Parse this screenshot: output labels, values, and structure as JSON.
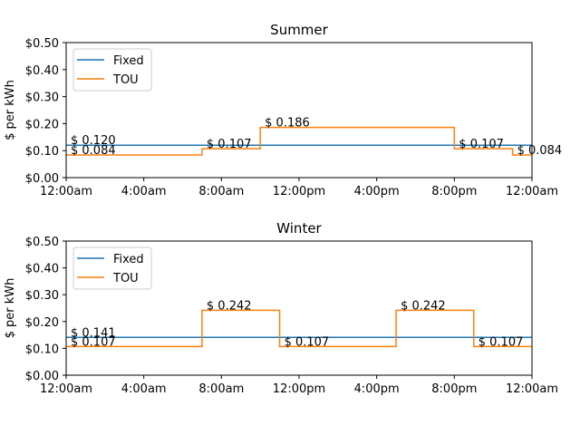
{
  "chart_data": [
    {
      "type": "line",
      "title": "Summer",
      "xlabel": "",
      "ylabel": "$ per kWh",
      "xlim": [
        0,
        24
      ],
      "ylim": [
        0,
        0.5
      ],
      "x_ticks": [
        0,
        4,
        8,
        12,
        16,
        20,
        24
      ],
      "x_tick_labels": [
        "12:00am",
        "4:00am",
        "8:00am",
        "12:00pm",
        "4:00pm",
        "8:00pm",
        "12:00am"
      ],
      "y_ticks": [
        0,
        0.1,
        0.2,
        0.3,
        0.4,
        0.5
      ],
      "y_tick_labels": [
        "$0.00",
        "$0.10",
        "$0.20",
        "$0.30",
        "$0.40",
        "$0.50"
      ],
      "legend": {
        "position": "upper-left",
        "entries": [
          "Fixed",
          "TOU"
        ]
      },
      "series": [
        {
          "name": "Fixed",
          "color": "#1f77b4",
          "steps": [
            {
              "start": 0,
              "end": 24,
              "value": 0.12
            }
          ]
        },
        {
          "name": "TOU",
          "color": "#ff7f0e",
          "steps": [
            {
              "start": 0,
              "end": 7,
              "value": 0.084
            },
            {
              "start": 7,
              "end": 10,
              "value": 0.107
            },
            {
              "start": 10,
              "end": 20,
              "value": 0.186
            },
            {
              "start": 20,
              "end": 23,
              "value": 0.107
            },
            {
              "start": 23,
              "end": 24,
              "value": 0.084
            }
          ]
        }
      ],
      "annotations": [
        {
          "x": 0,
          "y": 0.12,
          "text": "$ 0.120"
        },
        {
          "x": 0,
          "y": 0.084,
          "text": "$ 0.084"
        },
        {
          "x": 7,
          "y": 0.107,
          "text": "$ 0.107"
        },
        {
          "x": 10,
          "y": 0.186,
          "text": "$ 0.186"
        },
        {
          "x": 20,
          "y": 0.107,
          "text": "$ 0.107"
        },
        {
          "x": 23,
          "y": 0.084,
          "text": "$ 0.084"
        }
      ]
    },
    {
      "type": "line",
      "title": "Winter",
      "xlabel": "",
      "ylabel": "$ per kWh",
      "xlim": [
        0,
        24
      ],
      "ylim": [
        0,
        0.5
      ],
      "x_ticks": [
        0,
        4,
        8,
        12,
        16,
        20,
        24
      ],
      "x_tick_labels": [
        "12:00am",
        "4:00am",
        "8:00am",
        "12:00pm",
        "4:00pm",
        "8:00pm",
        "12:00am"
      ],
      "y_ticks": [
        0,
        0.1,
        0.2,
        0.3,
        0.4,
        0.5
      ],
      "y_tick_labels": [
        "$0.00",
        "$0.10",
        "$0.20",
        "$0.30",
        "$0.40",
        "$0.50"
      ],
      "legend": {
        "position": "upper-left",
        "entries": [
          "Fixed",
          "TOU"
        ]
      },
      "series": [
        {
          "name": "Fixed",
          "color": "#1f77b4",
          "steps": [
            {
              "start": 0,
              "end": 24,
              "value": 0.141
            }
          ]
        },
        {
          "name": "TOU",
          "color": "#ff7f0e",
          "steps": [
            {
              "start": 0,
              "end": 7,
              "value": 0.107
            },
            {
              "start": 7,
              "end": 11,
              "value": 0.242
            },
            {
              "start": 11,
              "end": 17,
              "value": 0.107
            },
            {
              "start": 17,
              "end": 21,
              "value": 0.242
            },
            {
              "start": 21,
              "end": 24,
              "value": 0.107
            }
          ]
        }
      ],
      "annotations": [
        {
          "x": 0,
          "y": 0.141,
          "text": "$ 0.141"
        },
        {
          "x": 0,
          "y": 0.107,
          "text": "$ 0.107"
        },
        {
          "x": 7,
          "y": 0.242,
          "text": "$ 0.242"
        },
        {
          "x": 11,
          "y": 0.107,
          "text": "$ 0.107"
        },
        {
          "x": 17,
          "y": 0.242,
          "text": "$ 0.242"
        },
        {
          "x": 21,
          "y": 0.107,
          "text": "$ 0.107"
        }
      ]
    }
  ]
}
